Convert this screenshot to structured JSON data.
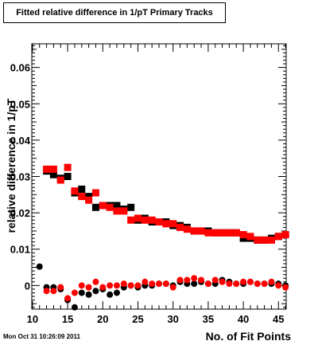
{
  "title": "Fitted relative difference in 1/pT Primary Tracks",
  "timestamp": "Mon Oct 31 10:26:09 2011",
  "chart_data": {
    "type": "scatter",
    "title": "Fitted relative difference in 1/pT Primary Tracks",
    "xlabel": "No. of Fit Points",
    "ylabel": "relative difference in 1/pT",
    "xlim": [
      9.9,
      46.1
    ],
    "ylim": [
      -0.0065,
      0.0665
    ],
    "x_ticks": [
      10,
      15,
      20,
      25,
      30,
      35,
      40,
      45
    ],
    "x_tick_labels": [
      "10",
      "15",
      "20",
      "25",
      "30",
      "35",
      "40",
      "45"
    ],
    "y_ticks": [
      0,
      0.01,
      0.02,
      0.03,
      0.04,
      0.05,
      0.06
    ],
    "y_tick_labels": [
      "0",
      "0.01",
      "0.02",
      "0.03",
      "0.04",
      "0.05",
      "0.06"
    ],
    "grid": false,
    "series": [
      {
        "marker": "square",
        "color": "#000000",
        "x": [
          12,
          13,
          14,
          15,
          16,
          17,
          18,
          19,
          20,
          21,
          22,
          23,
          24,
          25,
          26,
          27,
          28,
          29,
          30,
          31,
          32,
          33,
          34,
          35,
          36,
          37,
          38,
          39,
          40,
          41,
          42,
          43,
          44,
          45,
          46
        ],
        "values": [
          0.0315,
          0.0305,
          0.0295,
          0.03,
          0.0255,
          0.0265,
          0.0245,
          0.0215,
          0.022,
          0.022,
          0.022,
          0.021,
          0.0215,
          0.018,
          0.0185,
          0.0175,
          0.0175,
          0.0175,
          0.0165,
          0.0165,
          0.016,
          0.015,
          0.015,
          0.015,
          0.0145,
          0.0145,
          0.0145,
          0.0145,
          0.013,
          0.013,
          0.0125,
          0.0125,
          0.013,
          0.0135,
          0.014
        ]
      },
      {
        "marker": "square",
        "color": "#ff0000",
        "x": [
          12,
          13,
          14,
          15,
          16,
          17,
          18,
          19,
          20,
          21,
          22,
          23,
          24,
          25,
          26,
          27,
          28,
          29,
          30,
          31,
          32,
          33,
          34,
          35,
          36,
          37,
          38,
          39,
          40,
          41,
          42,
          43,
          44,
          45,
          46
        ],
        "values": [
          0.032,
          0.032,
          0.029,
          0.0325,
          0.026,
          0.0245,
          0.0235,
          0.0255,
          0.022,
          0.0215,
          0.0205,
          0.0205,
          0.018,
          0.0185,
          0.018,
          0.018,
          0.0175,
          0.017,
          0.017,
          0.016,
          0.0155,
          0.015,
          0.015,
          0.0145,
          0.0145,
          0.0145,
          0.0145,
          0.0145,
          0.014,
          0.0135,
          0.0125,
          0.0125,
          0.0125,
          0.0135,
          0.014
        ]
      },
      {
        "marker": "circle",
        "color": "#000000",
        "x": [
          11,
          12,
          13,
          14,
          15,
          16,
          17,
          18,
          19,
          20,
          21,
          22,
          23,
          24,
          25,
          26,
          27,
          28,
          29,
          30,
          31,
          32,
          33,
          34,
          35,
          36,
          37,
          38,
          39,
          40,
          41,
          42,
          43,
          44,
          45,
          46
        ],
        "values": [
          0.0052,
          -0.0005,
          -0.0005,
          -0.001,
          -0.004,
          -0.006,
          -0.002,
          -0.0025,
          -0.0015,
          -0.001,
          -0.0025,
          -0.002,
          -0.0005,
          0.0,
          -0.0005,
          0.0,
          0.0,
          0.0005,
          0.0005,
          0.0,
          0.001,
          0.0005,
          0.0005,
          0.001,
          0.0005,
          0.0005,
          0.0015,
          0.001,
          0.0005,
          0.0005,
          0.001,
          0.0005,
          0.0005,
          0.0005,
          0.0005,
          0.0
        ]
      },
      {
        "marker": "circle",
        "color": "#ff0000",
        "x": [
          12,
          13,
          14,
          15,
          16,
          17,
          18,
          19,
          20,
          21,
          22,
          23,
          24,
          25,
          26,
          27,
          28,
          29,
          30,
          31,
          32,
          33,
          34,
          35,
          36,
          37,
          38,
          39,
          40,
          41,
          42,
          43,
          44,
          45,
          46
        ],
        "values": [
          -0.0015,
          -0.0015,
          -0.0005,
          -0.0035,
          -0.002,
          0.0,
          -0.0005,
          0.001,
          -0.0005,
          0.0,
          0.0,
          0.0005,
          0.0,
          0.0,
          0.001,
          0.0005,
          0.0005,
          0.0005,
          -0.0005,
          0.0015,
          0.0015,
          0.002,
          0.0015,
          0.0005,
          0.0015,
          0.001,
          0.0005,
          0.0005,
          0.001,
          0.001,
          0.0005,
          0.0005,
          0.001,
          0.0,
          -0.0005
        ]
      }
    ]
  }
}
